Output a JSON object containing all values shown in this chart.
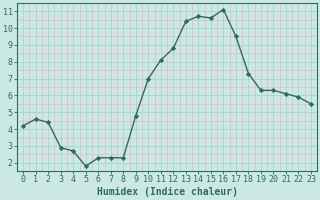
{
  "x": [
    0,
    1,
    2,
    3,
    4,
    5,
    6,
    7,
    8,
    9,
    10,
    11,
    12,
    13,
    14,
    15,
    16,
    17,
    18,
    19,
    20,
    21,
    22,
    23
  ],
  "y": [
    4.2,
    4.6,
    4.4,
    2.9,
    2.7,
    1.8,
    2.3,
    2.3,
    2.3,
    4.8,
    7.0,
    8.1,
    8.8,
    10.4,
    10.7,
    10.6,
    11.1,
    9.5,
    7.3,
    6.3,
    6.3,
    6.1,
    5.9,
    5.5
  ],
  "line_color": "#2e6b5e",
  "marker": "D",
  "marker_size": 2.2,
  "bg_color": "#cce8e4",
  "grid_major_color": "#aad4ce",
  "grid_minor_color": "#e8b8b8",
  "xlabel": "Humidex (Indice chaleur)",
  "xlim": [
    -0.5,
    23.5
  ],
  "ylim": [
    1.5,
    11.5
  ],
  "yticks": [
    2,
    3,
    4,
    5,
    6,
    7,
    8,
    9,
    10,
    11
  ],
  "xticks": [
    0,
    1,
    2,
    3,
    4,
    5,
    6,
    7,
    8,
    9,
    10,
    11,
    12,
    13,
    14,
    15,
    16,
    17,
    18,
    19,
    20,
    21,
    22,
    23
  ],
  "tick_color": "#2e6b5e",
  "label_fontsize": 7,
  "tick_fontsize": 6
}
